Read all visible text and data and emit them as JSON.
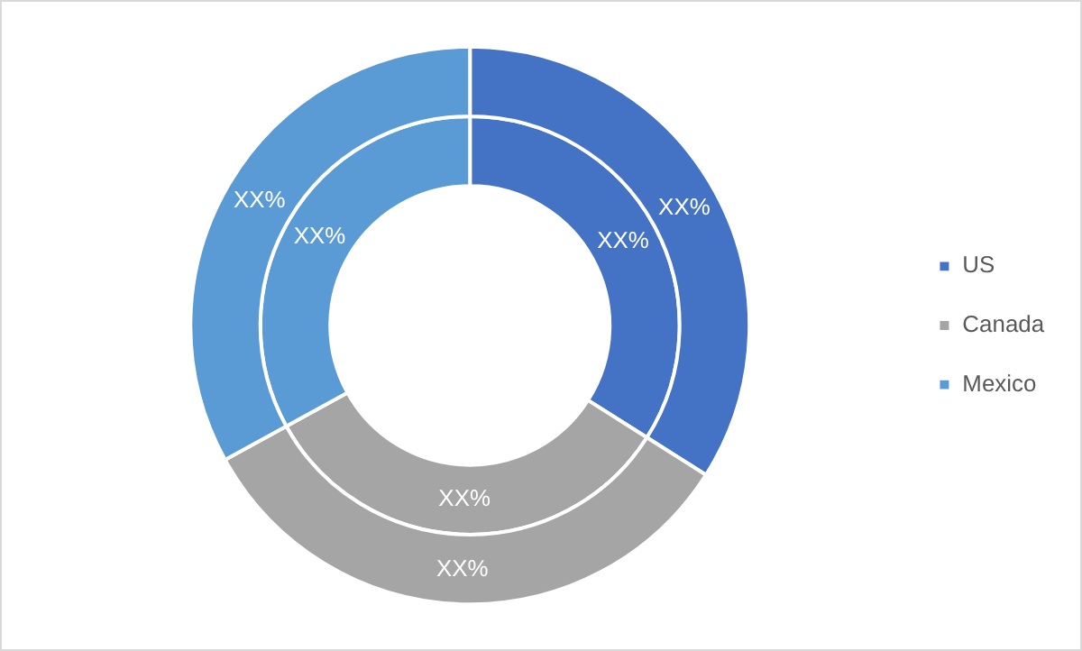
{
  "chart_data": {
    "type": "donut",
    "categories": [
      "US",
      "Canada",
      "Mexico"
    ],
    "colors": [
      "#4472c4",
      "#a5a5a5",
      "#5b9bd5"
    ],
    "legend": "right",
    "series": [
      {
        "values": [
          34,
          33,
          33
        ],
        "value_labels": [
          "XX%",
          "XX%",
          "XX%"
        ]
      },
      {
        "values": [
          34,
          33,
          33
        ],
        "value_labels": [
          "XX%",
          "XX%",
          "XX%"
        ]
      }
    ]
  }
}
